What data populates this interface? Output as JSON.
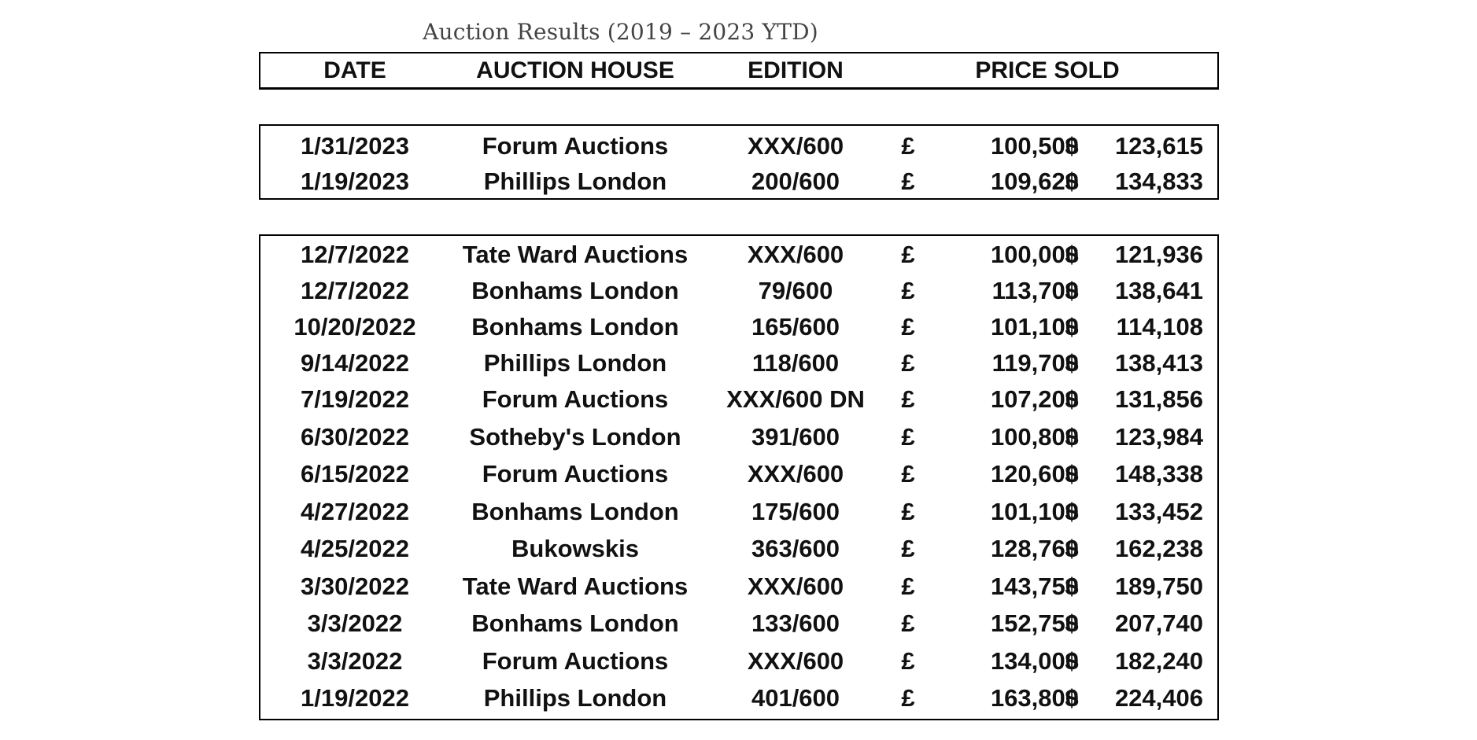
{
  "title": "Auction Results (2019 – 2023 YTD)",
  "headers": {
    "date": "DATE",
    "auction_house": "AUCTION HOUSE",
    "edition": "EDITION",
    "price_sold": "PRICE SOLD"
  },
  "currency": {
    "gbp": "£",
    "usd": "$"
  },
  "group_2023": [
    {
      "date": "1/31/2023",
      "house": "Forum Auctions",
      "edition": "XXX/600",
      "gbp": "100,500",
      "usd": "123,615"
    },
    {
      "date": "1/19/2023",
      "house": "Phillips London",
      "edition": "200/600",
      "gbp": "109,620",
      "usd": "134,833"
    }
  ],
  "group_2022": [
    {
      "date": "12/7/2022",
      "house": "Tate Ward Auctions",
      "edition": "XXX/600",
      "gbp": "100,000",
      "usd": "121,936"
    },
    {
      "date": "12/7/2022",
      "house": "Bonhams London",
      "edition": "79/600",
      "gbp": "113,700",
      "usd": "138,641"
    },
    {
      "date": "10/20/2022",
      "house": "Bonhams London",
      "edition": "165/600",
      "gbp": "101,100",
      "usd": "114,108"
    },
    {
      "date": "9/14/2022",
      "house": "Phillips London",
      "edition": "118/600",
      "gbp": "119,700",
      "usd": "138,413"
    },
    {
      "date": "7/19/2022",
      "house": "Forum Auctions",
      "edition": "XXX/600 DN",
      "gbp": "107,200",
      "usd": "131,856"
    },
    {
      "date": "6/30/2022",
      "house": "Sotheby's London",
      "edition": "391/600",
      "gbp": "100,800",
      "usd": "123,984"
    },
    {
      "date": "6/15/2022",
      "house": "Forum Auctions",
      "edition": "XXX/600",
      "gbp": "120,600",
      "usd": "148,338"
    },
    {
      "date": "4/27/2022",
      "house": "Bonhams London",
      "edition": "175/600",
      "gbp": "101,100",
      "usd": "133,452"
    },
    {
      "date": "4/25/2022",
      "house": "Bukowskis",
      "edition": "363/600",
      "gbp": "128,760",
      "usd": "162,238"
    },
    {
      "date": "3/30/2022",
      "house": "Tate Ward Auctions",
      "edition": "XXX/600",
      "gbp": "143,750",
      "usd": "189,750"
    },
    {
      "date": "3/3/2022",
      "house": "Bonhams London",
      "edition": "133/600",
      "gbp": "152,750",
      "usd": "207,740"
    },
    {
      "date": "3/3/2022",
      "house": "Forum Auctions",
      "edition": "XXX/600",
      "gbp": "134,000",
      "usd": "182,240"
    },
    {
      "date": "1/19/2022",
      "house": "Phillips London",
      "edition": "401/600",
      "gbp": "163,800",
      "usd": "224,406"
    }
  ]
}
